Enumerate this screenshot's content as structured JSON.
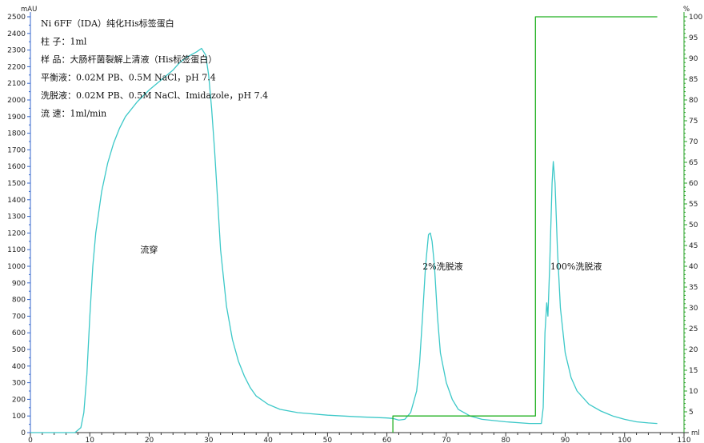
{
  "chart_data": {
    "type": "line",
    "info_lines": [
      "Ni  6FF（IDA）纯化His标签蛋白",
      "柱  子：1ml",
      "样  品：大肠杆菌裂解上清液（His标签蛋白）",
      "平衡液：0.02M PB、0.5M NaCl，pH 7.4",
      "洗脱液：0.02M PB、0.5M NaCl、Imidazole，pH 7.4",
      "流  速：1ml/min"
    ],
    "x_unit": "ml",
    "y_left_unit": "mAU",
    "y_right_unit": "%",
    "xlim": [
      0,
      110
    ],
    "ylim_left": [
      0,
      2500
    ],
    "ylim_right": [
      0,
      100
    ],
    "x_ticks": [
      0,
      10,
      20,
      30,
      40,
      50,
      60,
      70,
      80,
      90,
      100,
      110
    ],
    "y_left_ticks": [
      0,
      100,
      200,
      300,
      400,
      500,
      600,
      700,
      800,
      900,
      1000,
      1100,
      1200,
      1300,
      1400,
      1500,
      1600,
      1700,
      1800,
      1900,
      2000,
      2100,
      2200,
      2300,
      2400,
      2500
    ],
    "y_right_ticks": [
      5,
      10,
      15,
      20,
      25,
      30,
      35,
      40,
      45,
      50,
      55,
      60,
      65,
      70,
      75,
      80,
      85,
      90,
      95,
      100
    ],
    "annotations": [
      {
        "text": "流穿",
        "x": 18.5,
        "y": 1100
      },
      {
        "text": "2%洗脱液",
        "x": 66,
        "y": 1000
      },
      {
        "text": "100%洗脱液",
        "x": 87.5,
        "y": 1000
      }
    ],
    "series": [
      {
        "axis": "left",
        "color": "#3cc8c8",
        "points": [
          [
            0,
            0
          ],
          [
            7.5,
            0
          ],
          [
            8.5,
            30
          ],
          [
            9,
            120
          ],
          [
            9.5,
            350
          ],
          [
            10,
            700
          ],
          [
            10.5,
            1000
          ],
          [
            11,
            1200
          ],
          [
            12,
            1450
          ],
          [
            13,
            1620
          ],
          [
            14,
            1740
          ],
          [
            15,
            1830
          ],
          [
            16,
            1900
          ],
          [
            18,
            1990
          ],
          [
            20,
            2060
          ],
          [
            22,
            2120
          ],
          [
            24,
            2180
          ],
          [
            25,
            2220
          ],
          [
            26,
            2250
          ],
          [
            27,
            2270
          ],
          [
            28,
            2290
          ],
          [
            28.8,
            2310
          ],
          [
            29.5,
            2270
          ],
          [
            30,
            2150
          ],
          [
            30.5,
            1950
          ],
          [
            31,
            1700
          ],
          [
            31.5,
            1400
          ],
          [
            32,
            1100
          ],
          [
            33,
            760
          ],
          [
            34,
            560
          ],
          [
            35,
            430
          ],
          [
            36,
            340
          ],
          [
            37,
            270
          ],
          [
            38,
            220
          ],
          [
            40,
            170
          ],
          [
            42,
            140
          ],
          [
            45,
            120
          ],
          [
            50,
            105
          ],
          [
            55,
            95
          ],
          [
            60,
            88
          ],
          [
            61,
            85
          ],
          [
            62,
            75
          ],
          [
            63,
            80
          ],
          [
            64,
            120
          ],
          [
            65,
            250
          ],
          [
            65.5,
            420
          ],
          [
            66,
            700
          ],
          [
            66.5,
            1000
          ],
          [
            67,
            1190
          ],
          [
            67.3,
            1200
          ],
          [
            67.6,
            1150
          ],
          [
            68,
            1000
          ],
          [
            68.5,
            700
          ],
          [
            69,
            480
          ],
          [
            70,
            300
          ],
          [
            71,
            200
          ],
          [
            72,
            140
          ],
          [
            74,
            100
          ],
          [
            76,
            80
          ],
          [
            80,
            65
          ],
          [
            84,
            55
          ],
          [
            86,
            55
          ],
          [
            86.3,
            150
          ],
          [
            86.6,
            600
          ],
          [
            86.9,
            780
          ],
          [
            87.1,
            700
          ],
          [
            87.4,
            1000
          ],
          [
            87.8,
            1500
          ],
          [
            88,
            1630
          ],
          [
            88.3,
            1500
          ],
          [
            88.7,
            1100
          ],
          [
            89.2,
            750
          ],
          [
            90,
            480
          ],
          [
            91,
            330
          ],
          [
            92,
            250
          ],
          [
            94,
            170
          ],
          [
            96,
            130
          ],
          [
            98,
            100
          ],
          [
            100,
            80
          ],
          [
            102,
            65
          ],
          [
            104,
            58
          ],
          [
            105.5,
            55
          ]
        ]
      },
      {
        "axis": "right",
        "color": "#22b022",
        "points": [
          [
            61,
            0
          ],
          [
            61,
            4
          ],
          [
            85,
            4
          ],
          [
            85,
            100
          ],
          [
            105.5,
            100
          ]
        ]
      }
    ],
    "grid": false
  }
}
